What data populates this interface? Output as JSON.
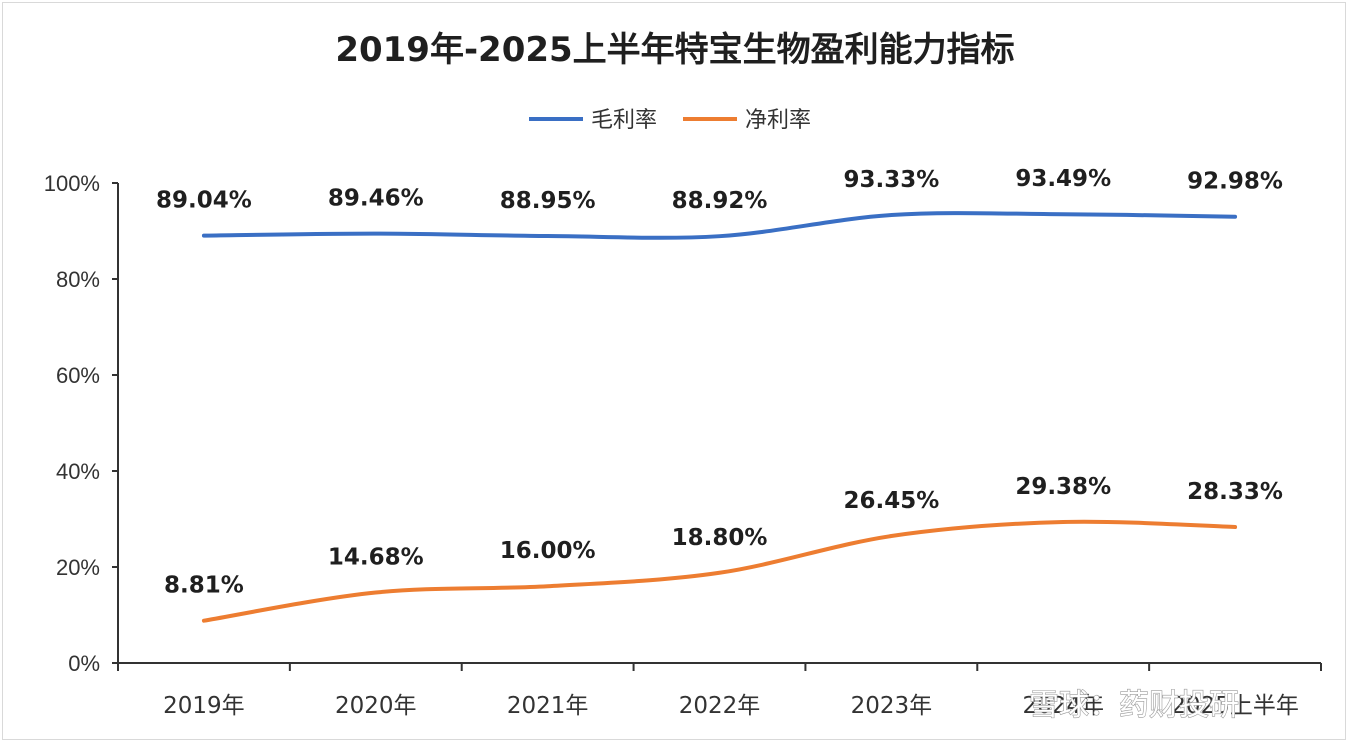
{
  "chart_data": {
    "type": "line",
    "title": "2019年-2025上半年特宝生物盈利能力指标",
    "categories": [
      "2019年",
      "2020年",
      "2021年",
      "2022年",
      "2023年",
      "2024年",
      "2025上半年"
    ],
    "series": [
      {
        "name": "毛利率",
        "color": "#3a6fc4",
        "values": [
          89.04,
          89.46,
          88.95,
          88.92,
          93.33,
          93.49,
          92.98
        ],
        "labels": [
          "89.04%",
          "89.46%",
          "88.95%",
          "88.92%",
          "93.33%",
          "93.49%",
          "92.98%"
        ]
      },
      {
        "name": "净利率",
        "color": "#ed7d31",
        "values": [
          8.81,
          14.68,
          16.0,
          18.8,
          26.45,
          29.38,
          28.33
        ],
        "labels": [
          "8.81%",
          "14.68%",
          "16.00%",
          "18.80%",
          "26.45%",
          "29.38%",
          "28.33%"
        ]
      }
    ],
    "yticks": [
      "0%",
      "20%",
      "40%",
      "60%",
      "80%",
      "100%"
    ],
    "ylim": [
      0,
      100
    ],
    "legend": "top-center",
    "grid": false
  },
  "watermark": "雪球：药财投研"
}
